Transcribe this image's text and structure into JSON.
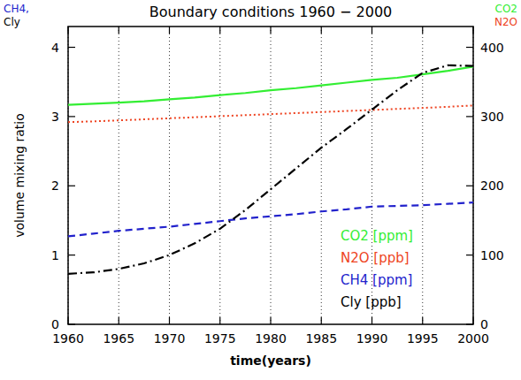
{
  "chart_data": {
    "type": "line",
    "title": "Boundary conditions 1960 − 2000",
    "x_label": "time(years)",
    "y_label": "volume mixing ratio",
    "annotations": [
      {
        "text": "CH4,",
        "color": "#2222cc"
      },
      {
        "text": "Cly",
        "color": "#000000"
      },
      {
        "text": "CO2",
        "color": "#33ee33"
      },
      {
        "text": "N2O",
        "color": "#ee4422"
      }
    ],
    "x": [
      1960,
      1962.5,
      1965,
      1967.5,
      1970,
      1972.5,
      1975,
      1977.5,
      1980,
      1982.5,
      1985,
      1987.5,
      1990,
      1992.5,
      1995,
      1997.5,
      2000
    ],
    "series": [
      {
        "name": "CO2 [ppm]",
        "color": "#33ee33",
        "line_style": "solid",
        "axis": "y2",
        "values": [
          317,
          318.5,
          320,
          322,
          325,
          327.5,
          331,
          334,
          338,
          341,
          345,
          349,
          353,
          356,
          361,
          366,
          372
        ]
      },
      {
        "name": "N2O [ppb]",
        "color": "#ee4422",
        "line_style": "dotted",
        "axis": "y2",
        "values": [
          292,
          293,
          294.5,
          296,
          297.5,
          299,
          300.5,
          302,
          303.5,
          305,
          306.5,
          308,
          309.5,
          311,
          312.5,
          314,
          316
        ]
      },
      {
        "name": "CH4 [ppm]",
        "color": "#2222cc",
        "line_style": "dashed",
        "values": [
          1.27,
          1.31,
          1.35,
          1.38,
          1.41,
          1.45,
          1.49,
          1.53,
          1.56,
          1.59,
          1.63,
          1.66,
          1.7,
          1.71,
          1.72,
          1.74,
          1.76
        ]
      },
      {
        "name": "Cly [ppb]",
        "color": "#000000",
        "line_style": "dashdot",
        "values": [
          0.73,
          0.75,
          0.8,
          0.88,
          1.0,
          1.17,
          1.38,
          1.65,
          1.95,
          2.25,
          2.55,
          2.82,
          3.1,
          3.38,
          3.63,
          3.74,
          3.73
        ]
      }
    ],
    "xlim": [
      1960,
      2000
    ],
    "xticks": [
      1960,
      1965,
      1970,
      1975,
      1980,
      1985,
      1990,
      1995,
      2000
    ],
    "ylim": [
      0,
      4.3
    ],
    "yticks": [
      0,
      1,
      2,
      3,
      4
    ],
    "y2lim": [
      0,
      430
    ],
    "y2ticks": [
      0,
      100,
      200,
      300,
      400
    ],
    "grid": true,
    "legend": "lower right"
  }
}
